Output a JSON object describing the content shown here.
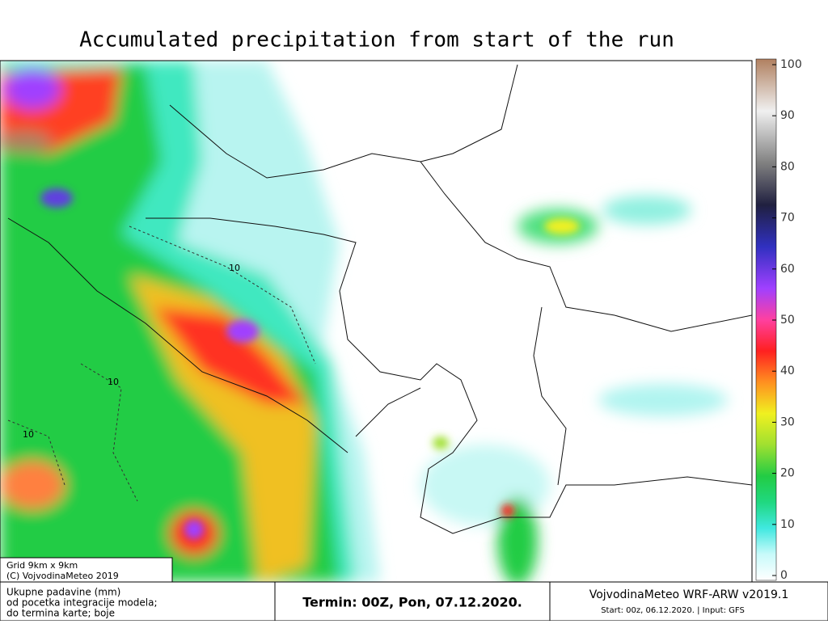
{
  "title": "Accumulated precipitation from start of the run",
  "colorbar": {
    "lim": [
      0,
      100
    ],
    "ticks": [
      0,
      10,
      20,
      30,
      40,
      50,
      60,
      70,
      80,
      90,
      100
    ]
  },
  "map": {
    "contour_labels": [
      "10",
      "10",
      "10"
    ]
  },
  "info_box": {
    "lines": [
      "Grid 9km x 9km",
      "(C) VojvodinaMeteo 2019"
    ]
  },
  "footer": {
    "description": [
      "Ukupne padavine (mm)",
      "od pocetka integracije modela;",
      "do termina karte; boje"
    ],
    "term": "Termin: 00Z, Pon, 07.12.2020.",
    "model": "VojvodinaMeteo WRF-ARW v2019.1",
    "run": "Start: 00z, 06.12.2020. | Input: GFS"
  }
}
